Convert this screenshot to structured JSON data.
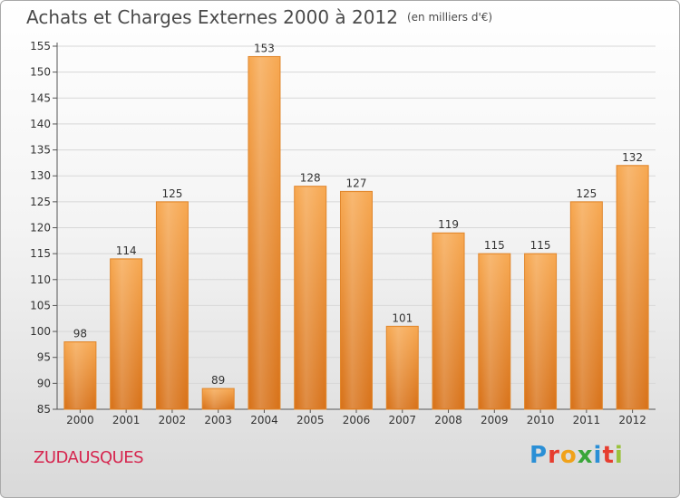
{
  "header": {
    "title": "Achats et Charges Externes 2000 à 2012",
    "unit": "(en milliers d'€)"
  },
  "footer": {
    "location": "ZUDAUSQUES",
    "brand": [
      "P",
      "r",
      "o",
      "x",
      "i",
      "t",
      "i"
    ]
  },
  "colors": {
    "bar_light": "#f5a652",
    "bar_dark": "#d67318",
    "grid": "#d7d7d7",
    "location": "#d6264f"
  },
  "chart_data": {
    "type": "bar",
    "title": "Achats et Charges Externes 2000 à 2012",
    "subtitle": "(en milliers d'€)",
    "categories": [
      "2000",
      "2001",
      "2002",
      "2003",
      "2004",
      "2005",
      "2006",
      "2007",
      "2008",
      "2009",
      "2010",
      "2011",
      "2012"
    ],
    "values": [
      98,
      114,
      125,
      89,
      153,
      128,
      127,
      101,
      119,
      115,
      115,
      125,
      132
    ],
    "ylim": [
      85,
      155
    ],
    "yticks": [
      85,
      90,
      95,
      100,
      105,
      110,
      115,
      120,
      125,
      130,
      135,
      140,
      145,
      150,
      155
    ],
    "grid": true
  }
}
